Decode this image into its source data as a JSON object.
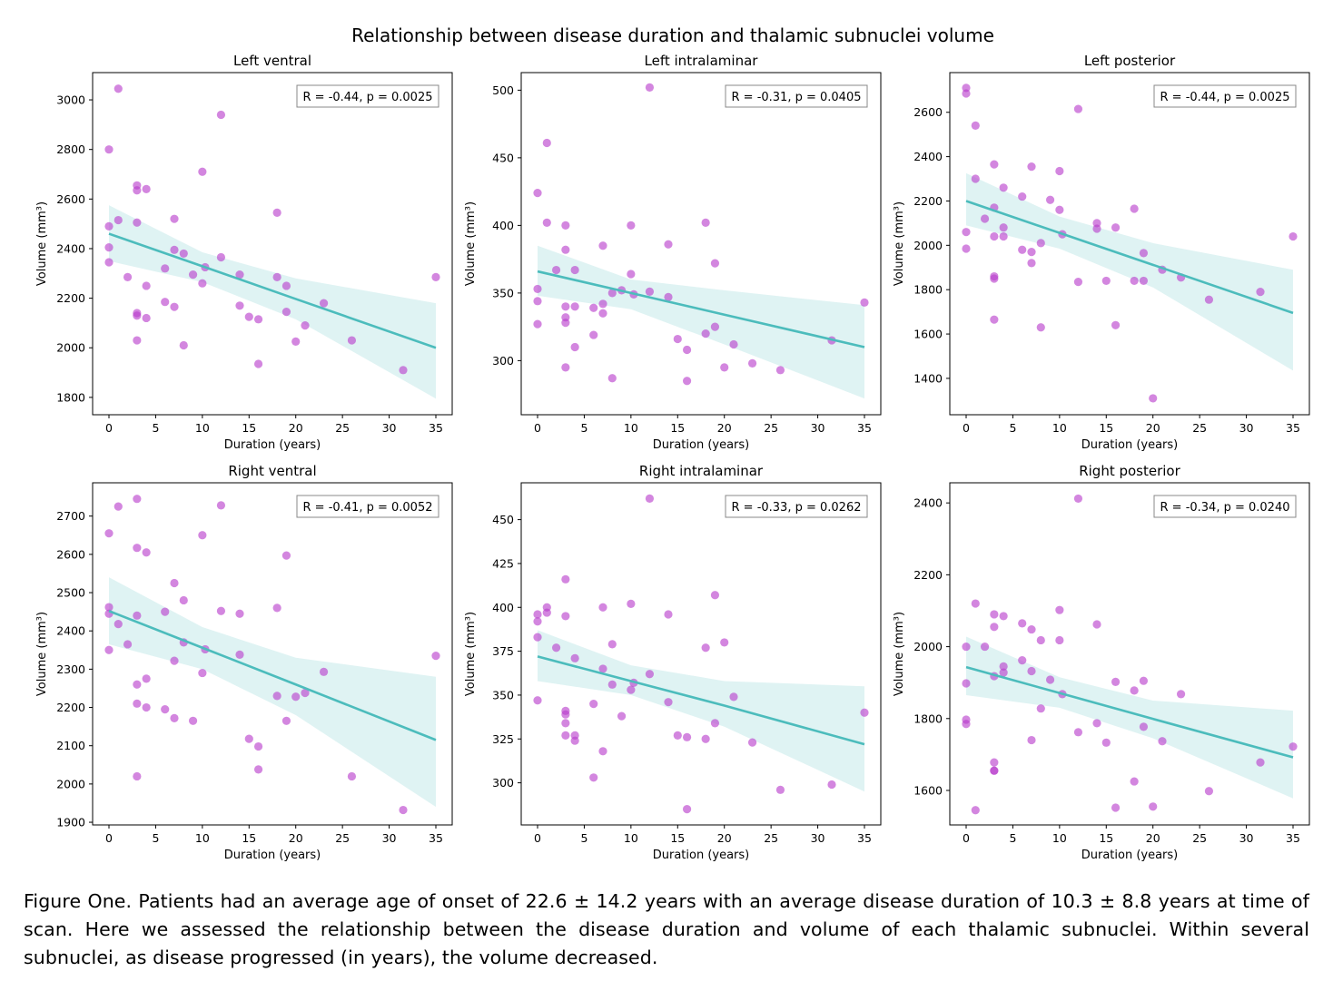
{
  "suptitle": "Relationship between disease duration and thalamic subnuclei volume",
  "caption": "Figure One. Patients had an average age of onset of 22.6 ± 14.2 years with an average disease duration of 10.3 ± 8.8 years at time of scan. Here we assessed the relationship between the disease duration and volume of each thalamic subnuclei. Within several subnuclei, as disease progressed (in years), the volume decreased.",
  "colors": {
    "points": "#b83ccc",
    "fit_line": "#4cbcbc",
    "ci_band": "#dff3f3"
  },
  "chart_data": [
    {
      "type": "scatter",
      "title": "Left ventral",
      "xlabel": "Duration (years)",
      "ylabel": "Volume (mm³)",
      "annotation": "R = -0.44, p = 0.0025",
      "legend": "top-right",
      "grid": false,
      "xlim": [
        -1.75,
        36.75
      ],
      "ylim": [
        1730,
        3110
      ],
      "xticks": [
        0,
        5,
        10,
        15,
        20,
        25,
        30,
        35
      ],
      "yticks": [
        1800,
        2000,
        2200,
        2400,
        2600,
        2800,
        3000
      ],
      "points": [
        [
          0,
          2800
        ],
        [
          0,
          2490
        ],
        [
          0,
          2405
        ],
        [
          0,
          2345
        ],
        [
          1,
          3045
        ],
        [
          1,
          2515
        ],
        [
          2,
          2285
        ],
        [
          3,
          2655
        ],
        [
          3,
          2635
        ],
        [
          3,
          2505
        ],
        [
          3,
          2140
        ],
        [
          3,
          2130
        ],
        [
          3,
          2030
        ],
        [
          4,
          2640
        ],
        [
          4,
          2250
        ],
        [
          4,
          2120
        ],
        [
          6,
          2320
        ],
        [
          6,
          2185
        ],
        [
          7,
          2520
        ],
        [
          7,
          2395
        ],
        [
          7,
          2165
        ],
        [
          8,
          2380
        ],
        [
          8,
          2010
        ],
        [
          9,
          2295
        ],
        [
          10,
          2710
        ],
        [
          10,
          2260
        ],
        [
          10.3,
          2325
        ],
        [
          12,
          2940
        ],
        [
          12,
          2365
        ],
        [
          14,
          2295
        ],
        [
          14,
          2170
        ],
        [
          15,
          2125
        ],
        [
          16,
          2115
        ],
        [
          16,
          1935
        ],
        [
          18,
          2545
        ],
        [
          18,
          2285
        ],
        [
          19,
          2250
        ],
        [
          19,
          2145
        ],
        [
          20,
          2025
        ],
        [
          21,
          2090
        ],
        [
          23,
          2180
        ],
        [
          26,
          2030
        ],
        [
          31.5,
          1910
        ],
        [
          35,
          2285
        ]
      ],
      "fit": {
        "x": [
          0,
          10,
          20,
          35
        ],
        "y": [
          2460,
          2329,
          2197,
          2000
        ],
        "ci_lower": [
          2350,
          2265,
          2115,
          1795
        ],
        "ci_upper": [
          2575,
          2385,
          2280,
          2180
        ]
      }
    },
    {
      "type": "scatter",
      "title": "Left intralaminar",
      "xlabel": "Duration (years)",
      "ylabel": "Volume (mm³)",
      "annotation": "R = -0.31, p = 0.0405",
      "legend": "top-right",
      "grid": false,
      "xlim": [
        -1.75,
        36.75
      ],
      "ylim": [
        260,
        513
      ],
      "xticks": [
        0,
        5,
        10,
        15,
        20,
        25,
        30,
        35
      ],
      "yticks": [
        300,
        350,
        400,
        450,
        500
      ],
      "points": [
        [
          0,
          424
        ],
        [
          0,
          353
        ],
        [
          0,
          344
        ],
        [
          0,
          327
        ],
        [
          1,
          461
        ],
        [
          1,
          402
        ],
        [
          2,
          367
        ],
        [
          3,
          400
        ],
        [
          3,
          382
        ],
        [
          3,
          340
        ],
        [
          3,
          332
        ],
        [
          3,
          328
        ],
        [
          3,
          295
        ],
        [
          4,
          367
        ],
        [
          4,
          340
        ],
        [
          4,
          310
        ],
        [
          6,
          339
        ],
        [
          6,
          319
        ],
        [
          7,
          385
        ],
        [
          7,
          342
        ],
        [
          7,
          335
        ],
        [
          8,
          287
        ],
        [
          8,
          350
        ],
        [
          9,
          352
        ],
        [
          10,
          400
        ],
        [
          10,
          364
        ],
        [
          10.3,
          349
        ],
        [
          12,
          502
        ],
        [
          12,
          351
        ],
        [
          14,
          386
        ],
        [
          14,
          347
        ],
        [
          15,
          316
        ],
        [
          16,
          308
        ],
        [
          16,
          285
        ],
        [
          18,
          402
        ],
        [
          18,
          320
        ],
        [
          19,
          372
        ],
        [
          19,
          325
        ],
        [
          20,
          295
        ],
        [
          21,
          312
        ],
        [
          23,
          298
        ],
        [
          26,
          293
        ],
        [
          31.5,
          315
        ],
        [
          35,
          343
        ]
      ],
      "fit": {
        "x": [
          0,
          10,
          20,
          35
        ],
        "y": [
          366,
          350,
          334,
          310
        ],
        "ci_lower": [
          348,
          338,
          312,
          272
        ],
        "ci_upper": [
          385,
          360,
          352,
          341
        ]
      }
    },
    {
      "type": "scatter",
      "title": "Left posterior",
      "xlabel": "Duration (years)",
      "ylabel": "Volume (mm³)",
      "annotation": "R = -0.44, p = 0.0025",
      "legend": "top-right",
      "grid": false,
      "xlim": [
        -1.75,
        36.75
      ],
      "ylim": [
        1236,
        2779
      ],
      "xticks": [
        0,
        5,
        10,
        15,
        20,
        25,
        30,
        35
      ],
      "yticks": [
        1400,
        1600,
        1800,
        2000,
        2200,
        2400,
        2600
      ],
      "points": [
        [
          0,
          2710
        ],
        [
          0,
          2685
        ],
        [
          0,
          2060
        ],
        [
          0,
          1985
        ],
        [
          1,
          2540
        ],
        [
          1,
          2300
        ],
        [
          2,
          2120
        ],
        [
          3,
          2365
        ],
        [
          3,
          2170
        ],
        [
          3,
          2040
        ],
        [
          3,
          1860
        ],
        [
          3,
          1850
        ],
        [
          3,
          1665
        ],
        [
          4,
          2260
        ],
        [
          4,
          2080
        ],
        [
          4,
          2040
        ],
        [
          6,
          2220
        ],
        [
          6,
          1980
        ],
        [
          7,
          2355
        ],
        [
          7,
          1970
        ],
        [
          7,
          1920
        ],
        [
          8,
          2010
        ],
        [
          8,
          1630
        ],
        [
          9,
          2205
        ],
        [
          10,
          2335
        ],
        [
          10,
          2160
        ],
        [
          10.3,
          2050
        ],
        [
          12,
          2615
        ],
        [
          12,
          1835
        ],
        [
          14,
          2100
        ],
        [
          14,
          2075
        ],
        [
          15,
          1840
        ],
        [
          16,
          2080
        ],
        [
          16,
          1640
        ],
        [
          18,
          2165
        ],
        [
          18,
          1840
        ],
        [
          19,
          1965
        ],
        [
          19,
          1840
        ],
        [
          20,
          1310
        ],
        [
          21,
          1890
        ],
        [
          23,
          1855
        ],
        [
          26,
          1755
        ],
        [
          31.5,
          1790
        ],
        [
          35,
          2040
        ]
      ],
      "fit": {
        "x": [
          0,
          10,
          20,
          35
        ],
        "y": [
          2200,
          2056,
          1912,
          1695
        ],
        "ci_lower": [
          2090,
          1985,
          1810,
          1435
        ],
        "ci_upper": [
          2325,
          2130,
          2010,
          1890
        ]
      }
    },
    {
      "type": "scatter",
      "title": "Right ventral",
      "xlabel": "Duration (years)",
      "ylabel": "Volume (mm³)",
      "annotation": "R = -0.41, p = 0.0052",
      "legend": "top-right",
      "grid": false,
      "xlim": [
        -1.75,
        36.75
      ],
      "ylim": [
        1893,
        2787
      ],
      "xticks": [
        0,
        5,
        10,
        15,
        20,
        25,
        30,
        35
      ],
      "yticks": [
        1900,
        2000,
        2100,
        2200,
        2300,
        2400,
        2500,
        2600,
        2700
      ],
      "points": [
        [
          0,
          2655
        ],
        [
          0,
          2462
        ],
        [
          0,
          2445
        ],
        [
          0,
          2350
        ],
        [
          1,
          2725
        ],
        [
          1,
          2418
        ],
        [
          2,
          2365
        ],
        [
          3,
          2745
        ],
        [
          3,
          2617
        ],
        [
          3,
          2440
        ],
        [
          3,
          2260
        ],
        [
          3,
          2210
        ],
        [
          3,
          2020
        ],
        [
          4,
          2605
        ],
        [
          4,
          2275
        ],
        [
          4,
          2200
        ],
        [
          6,
          2450
        ],
        [
          6,
          2195
        ],
        [
          7,
          2525
        ],
        [
          7,
          2322
        ],
        [
          7,
          2172
        ],
        [
          8,
          2480
        ],
        [
          8,
          2370
        ],
        [
          9,
          2165
        ],
        [
          10,
          2650
        ],
        [
          10,
          2290
        ],
        [
          10.3,
          2352
        ],
        [
          12,
          2728
        ],
        [
          12,
          2452
        ],
        [
          14,
          2445
        ],
        [
          14,
          2338
        ],
        [
          15,
          2118
        ],
        [
          16,
          2098
        ],
        [
          16,
          2038
        ],
        [
          18,
          2460
        ],
        [
          18,
          2230
        ],
        [
          19,
          2597
        ],
        [
          19,
          2165
        ],
        [
          20,
          2228
        ],
        [
          21,
          2238
        ],
        [
          23,
          2293
        ],
        [
          26,
          2020
        ],
        [
          31.5,
          1932
        ],
        [
          35,
          2335
        ]
      ],
      "fit": {
        "x": [
          0,
          10,
          20,
          35
        ],
        "y": [
          2452,
          2356,
          2260,
          2115
        ],
        "ci_lower": [
          2365,
          2300,
          2180,
          1940
        ],
        "ci_upper": [
          2540,
          2410,
          2330,
          2280
        ]
      }
    },
    {
      "type": "scatter",
      "title": "Right intralaminar",
      "xlabel": "Duration (years)",
      "ylabel": "Volume (mm³)",
      "annotation": "R = -0.33, p = 0.0262",
      "legend": "top-right",
      "grid": false,
      "xlim": [
        -1.75,
        36.75
      ],
      "ylim": [
        276,
        471
      ],
      "xticks": [
        0,
        5,
        10,
        15,
        20,
        25,
        30,
        35
      ],
      "yticks": [
        300,
        325,
        350,
        375,
        400,
        425,
        450
      ],
      "points": [
        [
          0,
          396
        ],
        [
          0,
          392
        ],
        [
          0,
          383
        ],
        [
          0,
          347
        ],
        [
          1,
          400
        ],
        [
          1,
          397
        ],
        [
          2,
          377
        ],
        [
          3,
          416
        ],
        [
          3,
          395
        ],
        [
          3,
          341
        ],
        [
          3,
          339
        ],
        [
          3,
          334
        ],
        [
          3,
          327
        ],
        [
          4,
          371
        ],
        [
          4,
          327
        ],
        [
          4,
          324
        ],
        [
          6,
          345
        ],
        [
          6,
          303
        ],
        [
          7,
          400
        ],
        [
          7,
          365
        ],
        [
          7,
          318
        ],
        [
          8,
          379
        ],
        [
          8,
          356
        ],
        [
          9,
          338
        ],
        [
          10,
          402
        ],
        [
          10,
          353
        ],
        [
          10.3,
          357
        ],
        [
          12,
          462
        ],
        [
          12,
          362
        ],
        [
          14,
          396
        ],
        [
          14,
          346
        ],
        [
          15,
          327
        ],
        [
          16,
          326
        ],
        [
          16,
          285
        ],
        [
          18,
          377
        ],
        [
          18,
          325
        ],
        [
          19,
          407
        ],
        [
          19,
          334
        ],
        [
          20,
          380
        ],
        [
          21,
          349
        ],
        [
          23,
          323
        ],
        [
          26,
          296
        ],
        [
          31.5,
          299
        ],
        [
          35,
          340
        ]
      ],
      "fit": {
        "x": [
          0,
          10,
          20,
          35
        ],
        "y": [
          372,
          358,
          344,
          322
        ],
        "ci_lower": [
          358,
          350,
          332,
          295
        ],
        "ci_upper": [
          387,
          367,
          358,
          355
        ]
      }
    },
    {
      "type": "scatter",
      "title": "Right posterior",
      "xlabel": "Duration (years)",
      "ylabel": "Volume (mm³)",
      "annotation": "R = -0.34, p = 0.0240",
      "legend": "top-right",
      "grid": false,
      "xlim": [
        -1.75,
        36.75
      ],
      "ylim": [
        1504,
        2456
      ],
      "xticks": [
        0,
        5,
        10,
        15,
        20,
        25,
        30,
        35
      ],
      "yticks": [
        1600,
        1800,
        2000,
        2200,
        2400
      ],
      "points": [
        [
          0,
          2000
        ],
        [
          0,
          1898
        ],
        [
          0,
          1797
        ],
        [
          0,
          1785
        ],
        [
          1,
          2120
        ],
        [
          1,
          1545
        ],
        [
          2,
          2000
        ],
        [
          3,
          2090
        ],
        [
          3,
          2055
        ],
        [
          3,
          1918
        ],
        [
          3,
          1678
        ],
        [
          3,
          1655
        ],
        [
          3,
          1655
        ],
        [
          4,
          2085
        ],
        [
          4,
          1945
        ],
        [
          4,
          1928
        ],
        [
          6,
          2065
        ],
        [
          6,
          1962
        ],
        [
          7,
          2048
        ],
        [
          7,
          1932
        ],
        [
          7,
          1740
        ],
        [
          8,
          2018
        ],
        [
          8,
          1828
        ],
        [
          9,
          1908
        ],
        [
          10,
          2102
        ],
        [
          10,
          2018
        ],
        [
          10.3,
          1868
        ],
        [
          12,
          2412
        ],
        [
          12,
          1762
        ],
        [
          14,
          2062
        ],
        [
          14,
          1787
        ],
        [
          15,
          1733
        ],
        [
          16,
          1902
        ],
        [
          16,
          1552
        ],
        [
          18,
          1878
        ],
        [
          18,
          1625
        ],
        [
          19,
          1905
        ],
        [
          19,
          1777
        ],
        [
          20,
          1555
        ],
        [
          21,
          1737
        ],
        [
          23,
          1868
        ],
        [
          26,
          1598
        ],
        [
          31.5,
          1678
        ],
        [
          35,
          1722
        ]
      ],
      "fit": {
        "x": [
          0,
          10,
          20,
          35
        ],
        "y": [
          1943,
          1871,
          1799,
          1692
        ],
        "ci_lower": [
          1865,
          1830,
          1745,
          1578
        ],
        "ci_upper": [
          2028,
          1915,
          1850,
          1822
        ]
      }
    }
  ]
}
